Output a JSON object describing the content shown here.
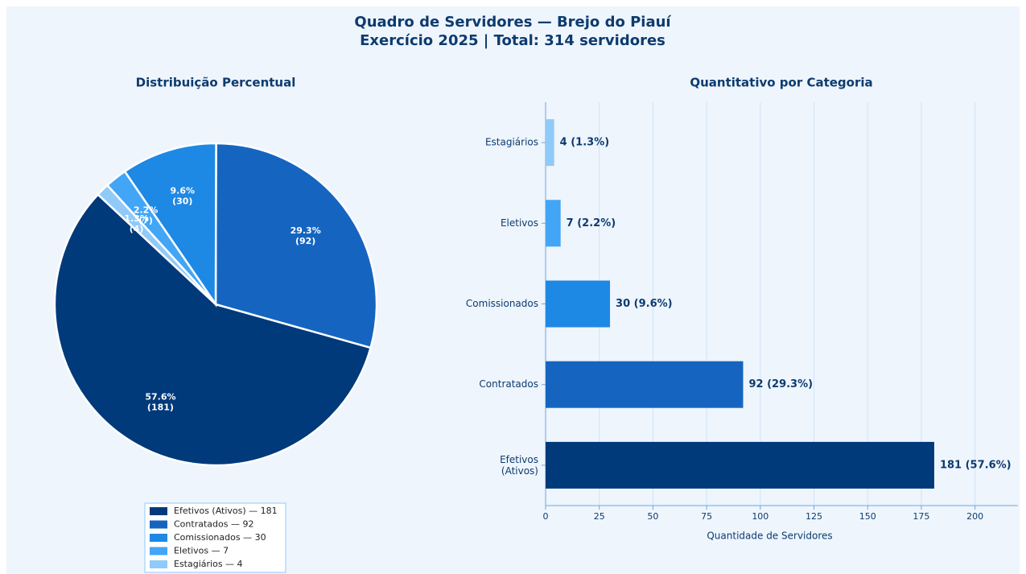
{
  "title": "Quadro de Servidores — Brejo do Piauí",
  "subtitle": "Exercício 2025  |  Total: 314 servidores",
  "chart_data": [
    {
      "type": "pie",
      "title": "Distribuição Percentual",
      "categories": [
        "Efetivos (Ativos)",
        "Contratados",
        "Comissionados",
        "Eletivos",
        "Estagiários"
      ],
      "values": [
        57.6,
        29.3,
        9.6,
        2.2,
        1.3
      ],
      "value_labels": [
        [
          "57.6%",
          "(181)"
        ],
        [
          "29.3%",
          "(92)"
        ],
        [
          "9.6%",
          "(30)"
        ],
        [
          "2.2%",
          "(7)"
        ],
        [
          "1.3%",
          "(4)"
        ]
      ],
      "legend_labels": [
        "Efetivos (Ativos) — 181",
        "Contratados — 92",
        "Comissionados — 30",
        "Eletivos — 7",
        "Estagiários — 4"
      ],
      "colors": [
        "#003a7a",
        "#1565c0",
        "#1e88e5",
        "#42a5f5",
        "#90caf9"
      ],
      "legend": "lower center"
    },
    {
      "type": "barh",
      "title": "Quantitativo por Categoria",
      "categories": [
        "Efetivos (Ativos)",
        "Contratados",
        "Comissionados",
        "Eletivos",
        "Estagiários"
      ],
      "values": [
        181,
        92,
        30,
        7,
        4
      ],
      "value_labels": [
        "181  (57.6%)",
        "92  (29.3%)",
        "30  (9.6%)",
        "7  (2.2%)",
        "4  (1.3%)"
      ],
      "colors": [
        "#003a7a",
        "#1565c0",
        "#1e88e5",
        "#42a5f5",
        "#90caf9"
      ],
      "xlabel": "Quantidade de Servidores",
      "xlim": [
        0,
        220
      ],
      "xticks": [
        0,
        25,
        50,
        75,
        100,
        125,
        150,
        175,
        200
      ],
      "grid": true
    }
  ]
}
